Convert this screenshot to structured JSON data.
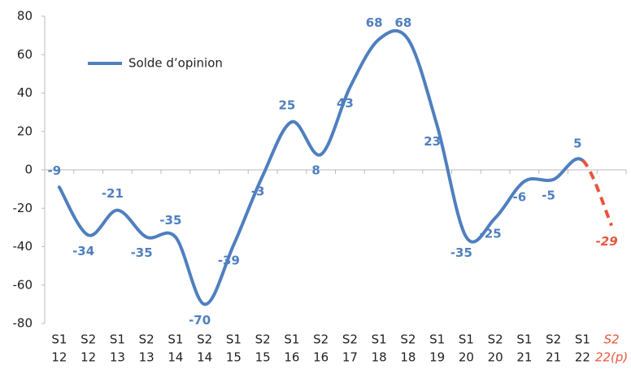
{
  "chart_data": {
    "type": "line",
    "categories": [
      [
        "S1",
        "12"
      ],
      [
        "S2",
        "12"
      ],
      [
        "S1",
        "13"
      ],
      [
        "S2",
        "13"
      ],
      [
        "S1",
        "14"
      ],
      [
        "S2",
        "14"
      ],
      [
        "S1",
        "15"
      ],
      [
        "S2",
        "15"
      ],
      [
        "S1",
        "16"
      ],
      [
        "S2",
        "16"
      ],
      [
        "S2",
        "17"
      ],
      [
        "S1",
        "18"
      ],
      [
        "S2",
        "18"
      ],
      [
        "S1",
        "19"
      ],
      [
        "S1",
        "20"
      ],
      [
        "S2",
        "20"
      ],
      [
        "S1",
        "21"
      ],
      [
        "S2",
        "21"
      ],
      [
        "S1",
        "22"
      ],
      [
        "S2",
        "22(p)"
      ]
    ],
    "series": [
      {
        "name": "Solde d’opinion",
        "color": "#4f7fbf",
        "values": [
          -9,
          -34,
          -21,
          -35,
          -35,
          -70,
          -39,
          -3,
          25,
          8,
          43,
          68,
          68,
          23,
          -35,
          -25,
          -6,
          -5,
          5,
          -29
        ]
      }
    ],
    "forecast_start": 19,
    "forecast_color": "#e8553c",
    "ylim": [
      -80,
      80
    ],
    "yticks": [
      -80,
      -60,
      -40,
      -20,
      0,
      20,
      40,
      60,
      80
    ],
    "smooth": true,
    "grid": false,
    "legend": "upper left"
  }
}
